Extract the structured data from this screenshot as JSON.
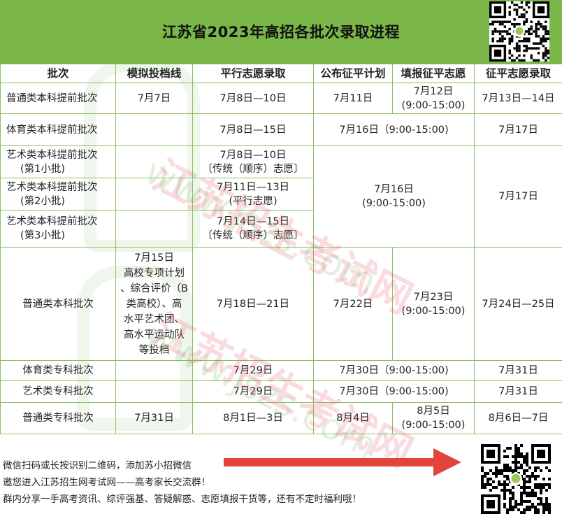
{
  "header": {
    "title": "江苏省2023年高招各批次录取进程",
    "background_color": "#7ab648"
  },
  "table": {
    "columns": [
      "批次",
      "模拟投档线",
      "平行志愿录取",
      "公布征平计划",
      "填报征平志愿",
      "征平志愿录取"
    ],
    "rows": [
      {
        "batch": "普通类本科提前批次",
        "sim": "7月7日",
        "parallel": "7月8日—10日",
        "publish": "7月11日",
        "fill": "7月12日",
        "fill_time": "(9:00-15:00)",
        "admit": "7月13日—14日"
      },
      {
        "batch": "体育类本科提前批次",
        "sim": "",
        "parallel": "7月8日—15日",
        "publish_fill": "7月16日（9:00-15:00)",
        "admit": "7月17日"
      },
      {
        "batch": "艺术类本科提前批次",
        "batch_sub": "(第1小批)",
        "sim": "",
        "parallel": "7月8日—10日",
        "parallel_sub": "〔传统（顺序）志愿〕"
      },
      {
        "batch": "艺术类本科提前批次",
        "batch_sub": "(第2小批)",
        "sim": "",
        "parallel": "7月11日—13日",
        "parallel_sub": "(平行志愿)"
      },
      {
        "batch": "艺术类本科提前批次",
        "batch_sub": "(第3小批)",
        "sim": "",
        "parallel": "7月14日—15日",
        "parallel_sub": "〔传统（顺序）志愿〕"
      },
      {
        "batch": "普通类本科批次",
        "sim_lines": [
          "7月15日",
          "高校专项计划",
          "、综合评价（B",
          "类高校）、高",
          "水平艺术团、",
          "高水平运动队",
          "等投档"
        ],
        "parallel": "7月18日—21日",
        "publish": "7月22日",
        "fill": "7月23日",
        "fill_time": "(9:00-15:00)",
        "admit": "7月24日—25日"
      },
      {
        "batch": "体育类专科批次",
        "sim": "",
        "parallel": "7月29日",
        "publish_fill": "7月30日（9:00-15:00)",
        "admit": "7月31日"
      },
      {
        "batch": "艺术类专科批次",
        "sim": "",
        "parallel": "7月29日",
        "publish_fill": "7月30日（9:00-15:00)",
        "admit": "7月31日"
      },
      {
        "batch": "普通类专科批次",
        "sim": "7月31日",
        "parallel": "8月1日—3日",
        "publish": "8月4日",
        "fill": "8月5日",
        "fill_time": "(9:00-15:00)",
        "admit": "8月6日—7日"
      }
    ],
    "art_merged": {
      "publish_fill": "7月16日",
      "publish_fill_time": "(9:00-15:00)",
      "admit": "7月17日"
    },
    "border_color": "#8cbf6a"
  },
  "watermark": {
    "text": "江苏招生考试网",
    "url": "www.jszs.com"
  },
  "footer": {
    "lines": [
      "微信扫码或长按识别二维码，添加苏小招微信",
      "邀您进入江苏招生网考试网——高考家长交流群！",
      "群内分享一手高考资讯、综评强基、答疑解惑、志愿填报干货等，还有不定时福利哦！"
    ],
    "arrow_color": "#e0443a"
  },
  "icons": {
    "qr_top": "qr-code-icon",
    "qr_bottom": "qr-code-icon",
    "arrow": "arrow-right-icon"
  }
}
